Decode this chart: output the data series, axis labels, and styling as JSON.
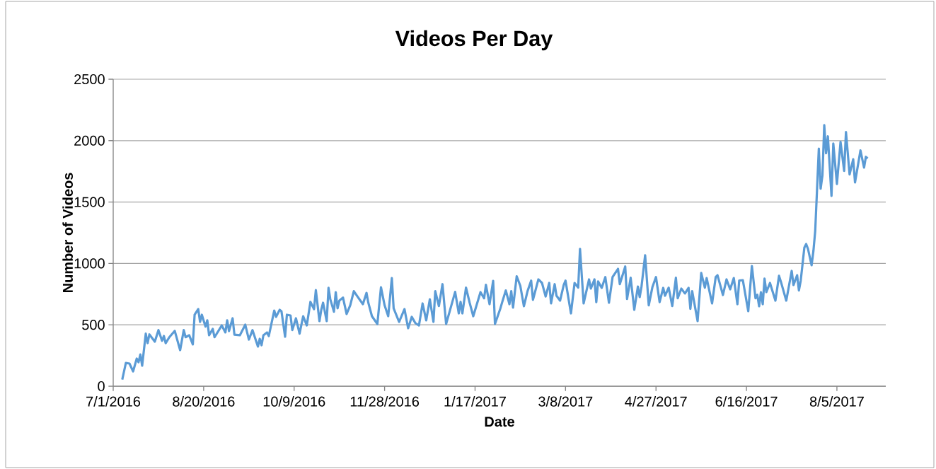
{
  "chart_data": {
    "type": "line",
    "title": "Videos Per Day",
    "xlabel": "Date",
    "ylabel": "Number of Videos",
    "xlim": [
      "2016-07-01",
      "2017-09-01"
    ],
    "xticks": [
      {
        "value": "2016-07-01",
        "label": "7/1/2016"
      },
      {
        "value": "2016-08-20",
        "label": "8/20/2016"
      },
      {
        "value": "2016-10-09",
        "label": "10/9/2016"
      },
      {
        "value": "2016-11-28",
        "label": "11/28/2016"
      },
      {
        "value": "2017-01-17",
        "label": "1/17/2017"
      },
      {
        "value": "2017-03-08",
        "label": "3/8/2017"
      },
      {
        "value": "2017-04-27",
        "label": "4/27/2017"
      },
      {
        "value": "2017-06-16",
        "label": "6/16/2017"
      },
      {
        "value": "2017-08-05",
        "label": "8/5/2017"
      }
    ],
    "ylim": [
      0,
      2500
    ],
    "yticks": [
      0,
      500,
      1000,
      1500,
      2000,
      2500
    ],
    "grid": "y",
    "series": [
      {
        "color": "#5b9bd5",
        "x": [
          "2016-07-06",
          "2016-07-08",
          "2016-07-10",
          "2016-07-12",
          "2016-07-14",
          "2016-07-15",
          "2016-07-16",
          "2016-07-17",
          "2016-07-19",
          "2016-07-20",
          "2016-07-21",
          "2016-07-24",
          "2016-07-26",
          "2016-07-28",
          "2016-07-29",
          "2016-07-30",
          "2016-08-01",
          "2016-08-04",
          "2016-08-07",
          "2016-08-09",
          "2016-08-10",
          "2016-08-12",
          "2016-08-14",
          "2016-08-15",
          "2016-08-17",
          "2016-08-18",
          "2016-08-19",
          "2016-08-21",
          "2016-08-22",
          "2016-08-23",
          "2016-08-25",
          "2016-08-26",
          "2016-08-30",
          "2016-09-01",
          "2016-09-02",
          "2016-09-03",
          "2016-09-05",
          "2016-09-06",
          "2016-09-09",
          "2016-09-12",
          "2016-09-14",
          "2016-09-16",
          "2016-09-19",
          "2016-09-20",
          "2016-09-21",
          "2016-09-22",
          "2016-09-24",
          "2016-09-25",
          "2016-09-28",
          "2016-09-29",
          "2016-10-01",
          "2016-10-02",
          "2016-10-04",
          "2016-10-05",
          "2016-10-07",
          "2016-10-08",
          "2016-10-10",
          "2016-10-12",
          "2016-10-14",
          "2016-10-16",
          "2016-10-18",
          "2016-10-20",
          "2016-10-21",
          "2016-10-23",
          "2016-10-24",
          "2016-10-25",
          "2016-10-27",
          "2016-10-28",
          "2016-10-29",
          "2016-10-31",
          "2016-11-01",
          "2016-11-02",
          "2016-11-03",
          "2016-11-05",
          "2016-11-07",
          "2016-11-09",
          "2016-11-11",
          "2016-11-13",
          "2016-11-16",
          "2016-11-18",
          "2016-11-19",
          "2016-11-21",
          "2016-11-24",
          "2016-11-26",
          "2016-11-28",
          "2016-11-30",
          "2016-12-02",
          "2016-12-03",
          "2016-12-06",
          "2016-12-09",
          "2016-12-11",
          "2016-12-13",
          "2016-12-15",
          "2016-12-17",
          "2016-12-19",
          "2016-12-21",
          "2016-12-23",
          "2016-12-25",
          "2016-12-26",
          "2016-12-28",
          "2016-12-30",
          "2017-01-01",
          "2017-01-03",
          "2017-01-06",
          "2017-01-08",
          "2017-01-09",
          "2017-01-10",
          "2017-01-12",
          "2017-01-14",
          "2017-01-16",
          "2017-01-20",
          "2017-01-22",
          "2017-01-23",
          "2017-01-25",
          "2017-01-27",
          "2017-01-28",
          "2017-01-31",
          "2017-02-01",
          "2017-02-03",
          "2017-02-05",
          "2017-02-06",
          "2017-02-07",
          "2017-02-09",
          "2017-02-11",
          "2017-02-13",
          "2017-02-15",
          "2017-02-17",
          "2017-02-18",
          "2017-02-21",
          "2017-02-23",
          "2017-02-25",
          "2017-02-27",
          "2017-02-28",
          "2017-03-02",
          "2017-03-03",
          "2017-03-05",
          "2017-03-07",
          "2017-03-08",
          "2017-03-11",
          "2017-03-13",
          "2017-03-15",
          "2017-03-16",
          "2017-03-18",
          "2017-03-21",
          "2017-03-22",
          "2017-03-24",
          "2017-03-25",
          "2017-03-26",
          "2017-03-28",
          "2017-03-30",
          "2017-04-01",
          "2017-04-03",
          "2017-04-06",
          "2017-04-07",
          "2017-04-10",
          "2017-04-11",
          "2017-04-13",
          "2017-04-15",
          "2017-04-17",
          "2017-04-18",
          "2017-04-19",
          "2017-04-21",
          "2017-04-23",
          "2017-04-25",
          "2017-04-27",
          "2017-04-29",
          "2017-05-01",
          "2017-05-02",
          "2017-05-04",
          "2017-05-06",
          "2017-05-08",
          "2017-05-09",
          "2017-05-11",
          "2017-05-13",
          "2017-05-15",
          "2017-05-16",
          "2017-05-17",
          "2017-05-20",
          "2017-05-22",
          "2017-05-24",
          "2017-05-25",
          "2017-05-28",
          "2017-05-30",
          "2017-05-31",
          "2017-06-03",
          "2017-06-05",
          "2017-06-07",
          "2017-06-09",
          "2017-06-11",
          "2017-06-12",
          "2017-06-14",
          "2017-06-17",
          "2017-06-19",
          "2017-06-21",
          "2017-06-22",
          "2017-06-23",
          "2017-06-24",
          "2017-06-25",
          "2017-06-26",
          "2017-06-27",
          "2017-06-29",
          "2017-07-02",
          "2017-07-04",
          "2017-07-05",
          "2017-07-08",
          "2017-07-11",
          "2017-07-12",
          "2017-07-14",
          "2017-07-15",
          "2017-07-16",
          "2017-07-18",
          "2017-07-19",
          "2017-07-20",
          "2017-07-22",
          "2017-07-23",
          "2017-07-24",
          "2017-07-26",
          "2017-07-27",
          "2017-07-28",
          "2017-07-29",
          "2017-07-30",
          "2017-07-31",
          "2017-08-02",
          "2017-08-03",
          "2017-08-05",
          "2017-08-07",
          "2017-08-09",
          "2017-08-10",
          "2017-08-12",
          "2017-08-14",
          "2017-08-15",
          "2017-08-18",
          "2017-08-20",
          "2017-08-21",
          "2017-08-22"
        ],
        "values": [
          54,
          190,
          184,
          121,
          225,
          196,
          259,
          167,
          428,
          351,
          422,
          363,
          457,
          370,
          409,
          351,
          399,
          451,
          294,
          457,
          399,
          415,
          340,
          582,
          628,
          524,
          582,
          486,
          537,
          415,
          467,
          399,
          495,
          438,
          537,
          449,
          553,
          420,
          415,
          501,
          380,
          457,
          323,
          386,
          334,
          415,
          438,
          409,
          616,
          565,
          622,
          611,
          403,
          582,
          576,
          457,
          553,
          428,
          570,
          495,
          687,
          628,
          783,
          530,
          622,
          680,
          530,
          801,
          708,
          607,
          766,
          634,
          697,
          722,
          588,
          659,
          774,
          731,
          668,
          760,
          680,
          570,
          507,
          806,
          659,
          570,
          881,
          634,
          524,
          628,
          472,
          565,
          514,
          495,
          674,
          536,
          708,
          524,
          774,
          653,
          831,
          507,
          611,
          768,
          593,
          687,
          593,
          803,
          680,
          570,
          766,
          716,
          826,
          668,
          858,
          507,
          634,
          685,
          780,
          668,
          774,
          640,
          895,
          818,
          651,
          774,
          860,
          703,
          870,
          841,
          731,
          841,
          674,
          831,
          737,
          697,
          824,
          860,
          593,
          841,
          803,
          1119,
          674,
          870,
          795,
          870,
          685,
          853,
          801,
          889,
          680,
          889,
          956,
          831,
          975,
          710,
          883,
          622,
          812,
          726,
          812,
          1067,
          659,
          806,
          889,
          685,
          801,
          737,
          803,
          653,
          883,
          716,
          795,
          755,
          801,
          630,
          774,
          530,
          922,
          803,
          881,
          674,
          889,
          904,
          743,
          870,
          789,
          881,
          668,
          860,
          864,
          611,
          979,
          716,
          745,
          651,
          766,
          668,
          876,
          766,
          841,
          697,
          899,
          853,
          697,
          939,
          824,
          904,
          780,
          860,
          1129,
          1158,
          1119,
          985,
          1100,
          1263,
          1935,
          1609,
          1717,
          2126,
          1897,
          2035,
          1550,
          1977,
          1647,
          1989,
          1753,
          2070,
          1724,
          1849,
          1659,
          1920,
          1780,
          1868,
          1855
        ]
      }
    ]
  }
}
